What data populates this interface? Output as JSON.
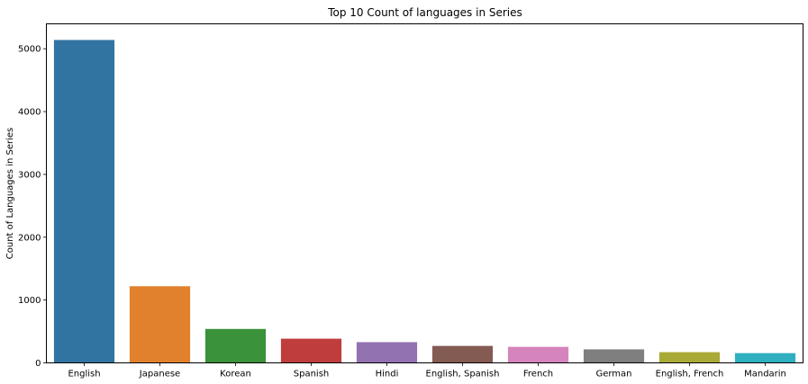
{
  "chart_data": {
    "type": "bar",
    "title": "Top 10 Count of languages in Series",
    "xlabel": "",
    "ylabel": "Count of Languages in Series",
    "categories": [
      "English",
      "Japanese",
      "Korean",
      "Spanish",
      "Hindi",
      "English, Spanish",
      "French",
      "German",
      "English, French",
      "Mandarin"
    ],
    "values": [
      5140,
      1220,
      540,
      385,
      330,
      270,
      255,
      215,
      170,
      155
    ],
    "colors": [
      "#3274a1",
      "#e1812c",
      "#3a923a",
      "#c03d3e",
      "#9372b2",
      "#845b53",
      "#d684bd",
      "#7f7f7f",
      "#a9aa35",
      "#2eb0c1"
    ],
    "yticks": [
      0,
      1000,
      2000,
      3000,
      4000,
      5000
    ],
    "ylim": [
      0,
      5397
    ],
    "grid": false,
    "legend": "none"
  }
}
